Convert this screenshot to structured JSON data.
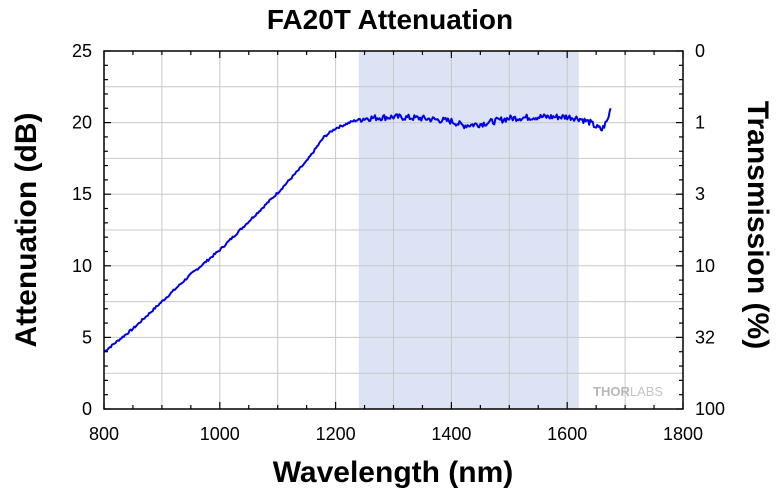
{
  "chart_data": {
    "type": "line",
    "title": "FA20T Attenuation",
    "xlabel": "Wavelength (nm)",
    "ylabel": "Attenuation (dB)",
    "y2label": "Transmission (%)",
    "xlim": [
      800,
      1800
    ],
    "ylim": [
      0,
      25
    ],
    "xticks": [
      "800",
      "1000",
      "1200",
      "1400",
      "1600",
      "1800"
    ],
    "yticks": [
      "0",
      "5",
      "10",
      "15",
      "20",
      "25"
    ],
    "y2ticks": [
      {
        "label": "0",
        "at_db": 25
      },
      {
        "label": "1",
        "at_db": 20
      },
      {
        "label": "3",
        "at_db": 15
      },
      {
        "label": "10",
        "at_db": 10
      },
      {
        "label": "32",
        "at_db": 5
      },
      {
        "label": "100",
        "at_db": 0
      }
    ],
    "grid": true,
    "shaded_region": {
      "x_start": 1240,
      "x_end": 1620,
      "color": "#dbe3f5"
    },
    "line_color": "#0000e6",
    "series": [
      {
        "x": [
          800,
          850,
          900,
          950,
          1000,
          1050,
          1100,
          1150,
          1180,
          1200,
          1230,
          1250,
          1300,
          1350,
          1400,
          1420,
          1450,
          1500,
          1550,
          1600,
          1620,
          1640,
          1650,
          1660,
          1670,
          1675
        ],
        "y": [
          4.0,
          5.6,
          7.5,
          9.4,
          11.1,
          13.1,
          15.1,
          17.3,
          19.0,
          19.6,
          20.1,
          20.3,
          20.4,
          20.3,
          20.1,
          19.8,
          19.9,
          20.3,
          20.4,
          20.4,
          20.3,
          20.0,
          19.7,
          19.5,
          20.2,
          21.0
        ]
      }
    ],
    "watermark": {
      "part1": "THOR",
      "part2": "LABS"
    }
  }
}
